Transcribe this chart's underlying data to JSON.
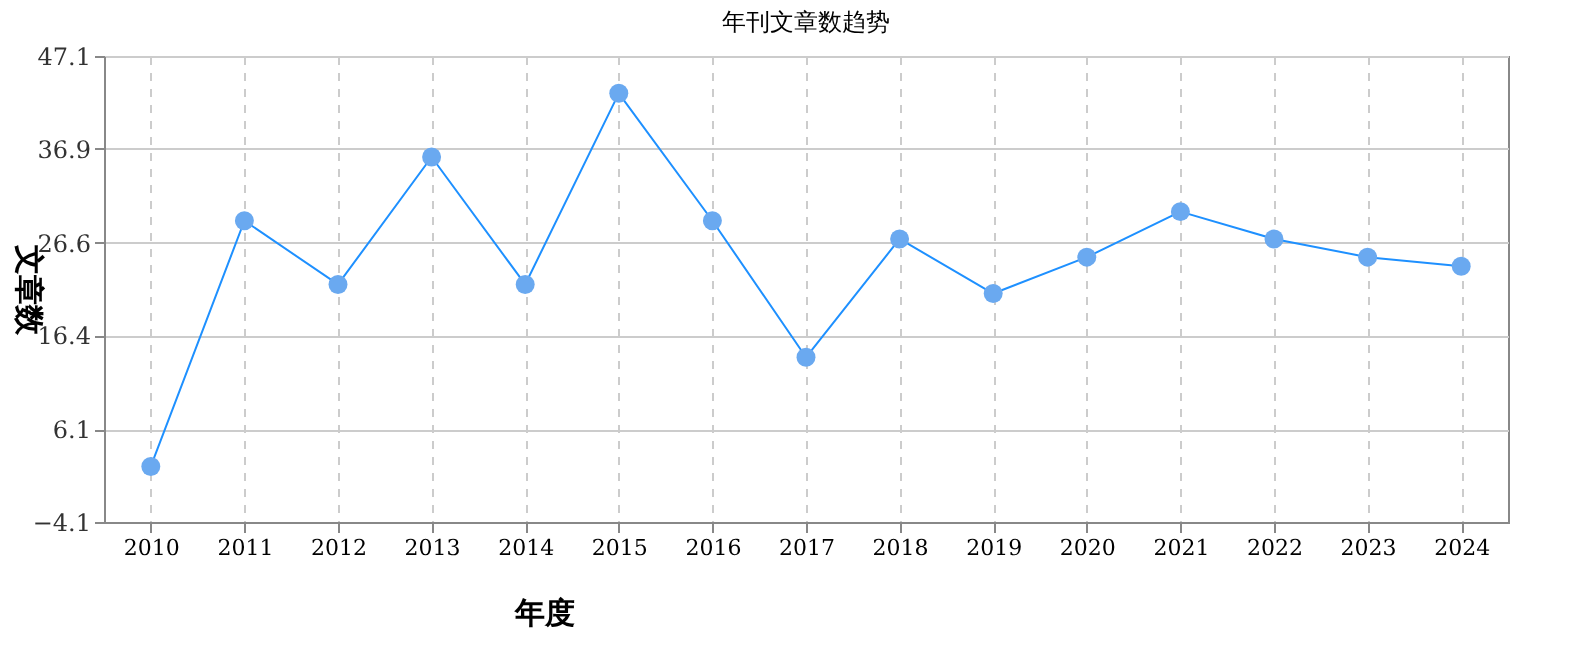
{
  "chart_data": {
    "type": "line",
    "title": "年刊文章数趋势",
    "xlabel": "年度",
    "ylabel": "文章数",
    "categories": [
      "2010",
      "2011",
      "2012",
      "2013",
      "2014",
      "2015",
      "2016",
      "2017",
      "2018",
      "2019",
      "2020",
      "2021",
      "2022",
      "2023",
      "2024"
    ],
    "series": [
      {
        "color": "#1e90ff",
        "values": [
          2,
          29,
          22,
          36,
          22,
          43,
          29,
          14,
          27,
          21,
          25,
          30,
          27,
          25,
          24
        ]
      }
    ],
    "ylim": [
      -4.1,
      47.1
    ],
    "yticks": [
      -4.1,
      6.1,
      16.4,
      26.6,
      36.9,
      47.1
    ],
    "grid": true,
    "marker": "circle",
    "line_style": "solid"
  }
}
